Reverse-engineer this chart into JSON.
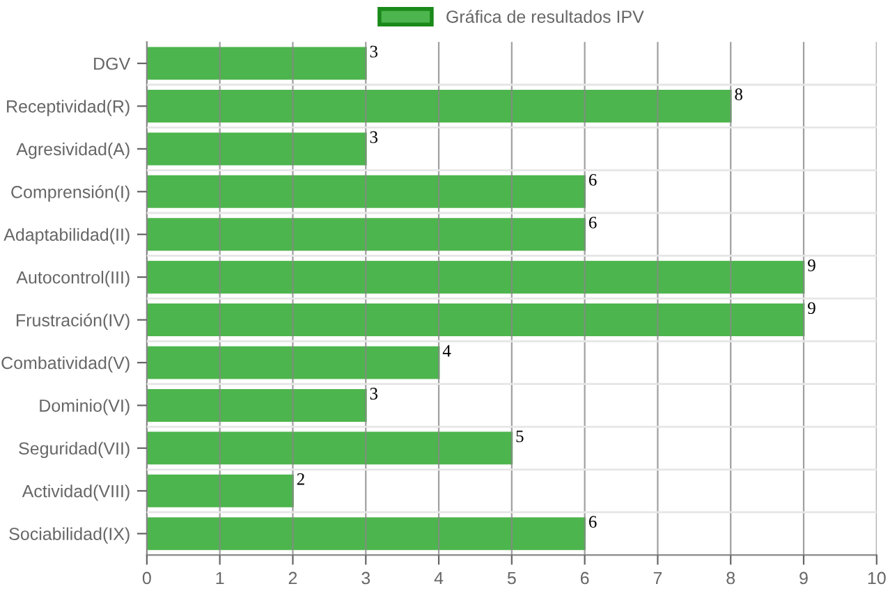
{
  "chart_data": {
    "type": "bar",
    "orientation": "horizontal",
    "categories": [
      "DGV",
      "Receptividad(R)",
      "Agresividad(A)",
      "Comprensión(I)",
      "Adaptabilidad(II)",
      "Autocontrol(III)",
      "Frustración(IV)",
      "Combatividad(V)",
      "Dominio(VI)",
      "Seguridad(VII)",
      "Actividad(VIII)",
      "Sociabilidad(IX)"
    ],
    "series": [
      {
        "name": "Gráfica de resultados IPV",
        "color": "#4db54d",
        "values": [
          3,
          8,
          3,
          6,
          6,
          9,
          9,
          4,
          3,
          5,
          2,
          6
        ]
      }
    ],
    "xlim": [
      0,
      10
    ],
    "xticks": [
      0,
      1,
      2,
      3,
      4,
      5,
      6,
      7,
      8,
      9,
      10
    ],
    "grid": true,
    "legend": "top",
    "data_labels": true
  }
}
